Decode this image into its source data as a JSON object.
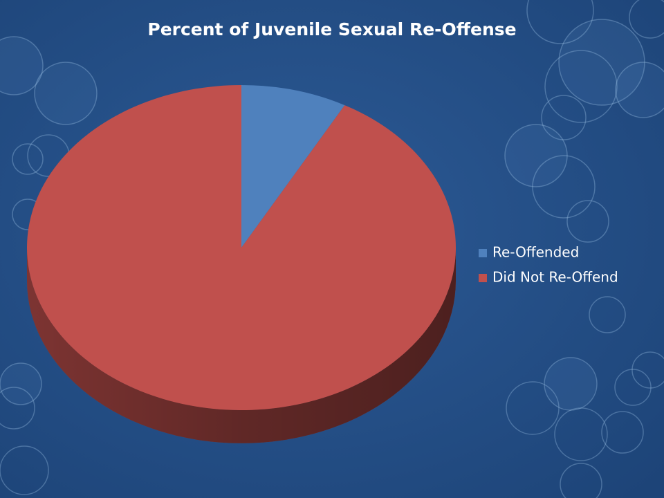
{
  "chart_data": {
    "type": "pie",
    "title": "Percent of Juvenile Sexual Re-Offense",
    "categories": [
      "Re-Offended",
      "Did Not Re-Offend"
    ],
    "values": [
      8,
      92
    ],
    "colors": [
      "#4f81bd",
      "#c0504d"
    ],
    "legend": "right"
  }
}
